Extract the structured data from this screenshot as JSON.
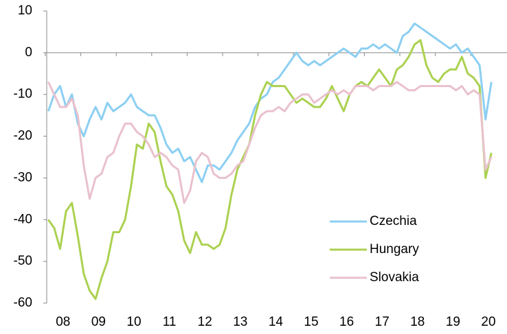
{
  "chart_data": {
    "type": "line",
    "categories": [
      null,
      null,
      null,
      "08",
      null,
      null,
      null,
      null,
      null,
      "09",
      null,
      null,
      null,
      null,
      null,
      "10",
      null,
      null,
      null,
      null,
      null,
      "11",
      null,
      null,
      null,
      null,
      null,
      "12",
      null,
      null,
      null,
      null,
      null,
      "13",
      null,
      null,
      null,
      null,
      null,
      "14",
      null,
      null,
      null,
      null,
      null,
      "15",
      null,
      null,
      null,
      null,
      null,
      "16",
      null,
      null,
      null,
      null,
      null,
      "17",
      null,
      null,
      null,
      null,
      null,
      "18",
      null,
      null,
      null,
      null,
      null,
      "19",
      null,
      null,
      null,
      null,
      null,
      "20"
    ],
    "series": [
      {
        "name": "Czechia",
        "color": "#8ccff2",
        "values": [
          -14,
          -10,
          -8,
          -13,
          -10,
          -17,
          -20,
          -16,
          -13,
          -16,
          -12,
          -14,
          -13,
          -12,
          -10,
          -13,
          -14,
          -15,
          -15,
          -18,
          -22,
          -24,
          -23,
          -26,
          -25,
          -28,
          -31,
          -27,
          -27,
          -28,
          -26,
          -24,
          -21,
          -19,
          -17,
          -13,
          -11,
          -10,
          -7,
          -6,
          -4,
          -2,
          0,
          -2,
          -3,
          -2,
          -3,
          -2,
          -1,
          0,
          1,
          0,
          -1,
          1,
          1,
          2,
          1,
          2,
          1,
          0,
          4,
          5,
          7,
          6,
          5,
          4,
          3,
          2,
          1,
          2,
          0,
          1,
          -1,
          -3,
          -16,
          -7
        ]
      },
      {
        "name": "Hungary",
        "color": "#abd150",
        "values": [
          -40,
          -42,
          -47,
          -38,
          -36,
          -44,
          -53,
          -57,
          -59,
          -54,
          -50,
          -43,
          -43,
          -40,
          -32,
          -22,
          -23,
          -17,
          -19,
          -26,
          -32,
          -34,
          -38,
          -45,
          -48,
          -43,
          -46,
          -46,
          -47,
          -46,
          -42,
          -34,
          -28,
          -25,
          -22,
          -15,
          -10,
          -7,
          -8,
          -8,
          -8,
          -10,
          -12,
          -11,
          -12,
          -13,
          -13,
          -11,
          -8,
          -11,
          -14,
          -10,
          -8,
          -7,
          -8,
          -6,
          -4,
          -6,
          -8,
          -4,
          -3,
          -1,
          2,
          3,
          -3,
          -6,
          -7,
          -5,
          -4,
          -4,
          -1,
          -5,
          -6,
          -8,
          -30,
          -24
        ]
      },
      {
        "name": "Slovakia",
        "color": "#e9c1cd",
        "values": [
          -7,
          -10,
          -13,
          -13,
          -11,
          -15,
          -27,
          -35,
          -30,
          -29,
          -25,
          -24,
          -20,
          -17,
          -17,
          -19,
          -20,
          -22,
          -25,
          -24,
          -25,
          -27,
          -28,
          -36,
          -33,
          -26,
          -24,
          -25,
          -29,
          -30,
          -30,
          -29,
          -27,
          -26,
          -22,
          -18,
          -15,
          -14,
          -14,
          -13,
          -14,
          -12,
          -11,
          -10,
          -10,
          -12,
          -11,
          -10,
          -9,
          -10,
          -9,
          -10,
          -8,
          -8,
          -8,
          -9,
          -8,
          -8,
          -8,
          -7,
          -8,
          -9,
          -9,
          -8,
          -8,
          -8,
          -8,
          -8,
          -8,
          -9,
          -8,
          -10,
          -9,
          -10,
          -28,
          -25
        ]
      }
    ],
    "ylim": [
      -60,
      10
    ],
    "yticks": [
      -60,
      -50,
      -40,
      -30,
      -20,
      -10,
      0,
      10
    ],
    "legend": "lower right"
  }
}
